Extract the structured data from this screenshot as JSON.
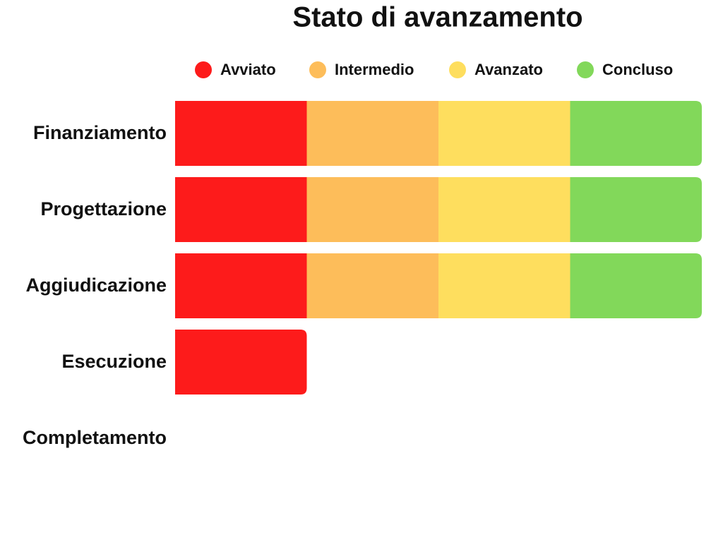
{
  "chart_data": {
    "type": "stacked-bar",
    "orientation": "horizontal",
    "title": "Stato di avanzamento",
    "categories": [
      "Finanziamento",
      "Progettazione",
      "Aggiudicazione",
      "Esecuzione",
      "Completamento"
    ],
    "series": [
      {
        "name": "Avviato",
        "color": "#fd1b1b",
        "values": [
          1,
          1,
          1,
          1,
          0
        ]
      },
      {
        "name": "Intermedio",
        "color": "#fdbd5a",
        "values": [
          1,
          1,
          1,
          0,
          0
        ]
      },
      {
        "name": "Avanzato",
        "color": "#fede5e",
        "values": [
          1,
          1,
          1,
          0,
          0
        ]
      },
      {
        "name": "Concluso",
        "color": "#82d85a",
        "values": [
          1,
          1,
          1,
          0,
          0
        ]
      }
    ],
    "xlim": [
      0,
      4
    ],
    "legend": "top"
  }
}
